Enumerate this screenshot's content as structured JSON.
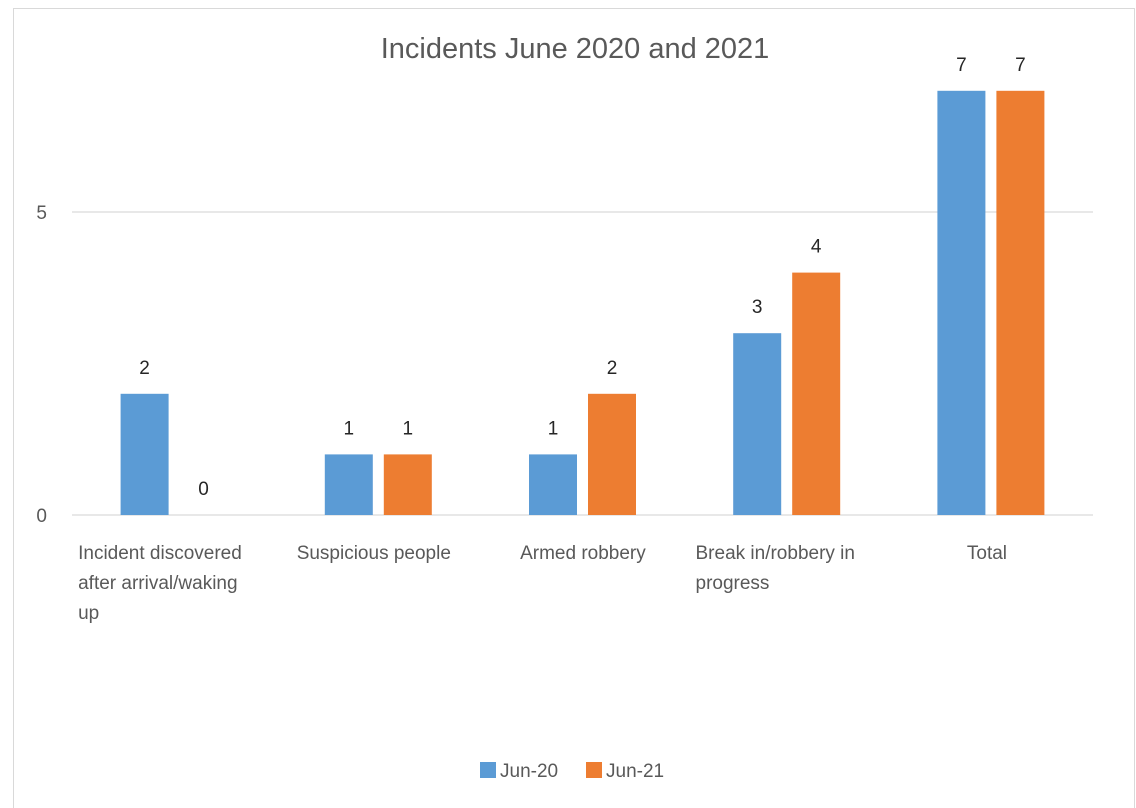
{
  "chart_data": {
    "type": "bar",
    "title": "Incidents June 2020 and 2021",
    "categories": [
      [
        "Incident discovered",
        "after arrival/waking",
        "up"
      ],
      [
        "Suspicious people"
      ],
      [
        "Armed robbery"
      ],
      [
        "Break in/robbery in",
        "progress"
      ],
      [
        "Total"
      ]
    ],
    "series": [
      {
        "name": "Jun-20",
        "color": "#5b9bd5",
        "values": [
          2,
          1,
          1,
          3,
          7
        ]
      },
      {
        "name": "Jun-21",
        "color": "#ed7d31",
        "values": [
          0,
          1,
          2,
          4,
          7
        ]
      }
    ],
    "yticks": [
      0,
      5
    ],
    "ylim": [
      0,
      7.5
    ],
    "grid": true,
    "data_labels": true,
    "legend_position": "bottom"
  }
}
